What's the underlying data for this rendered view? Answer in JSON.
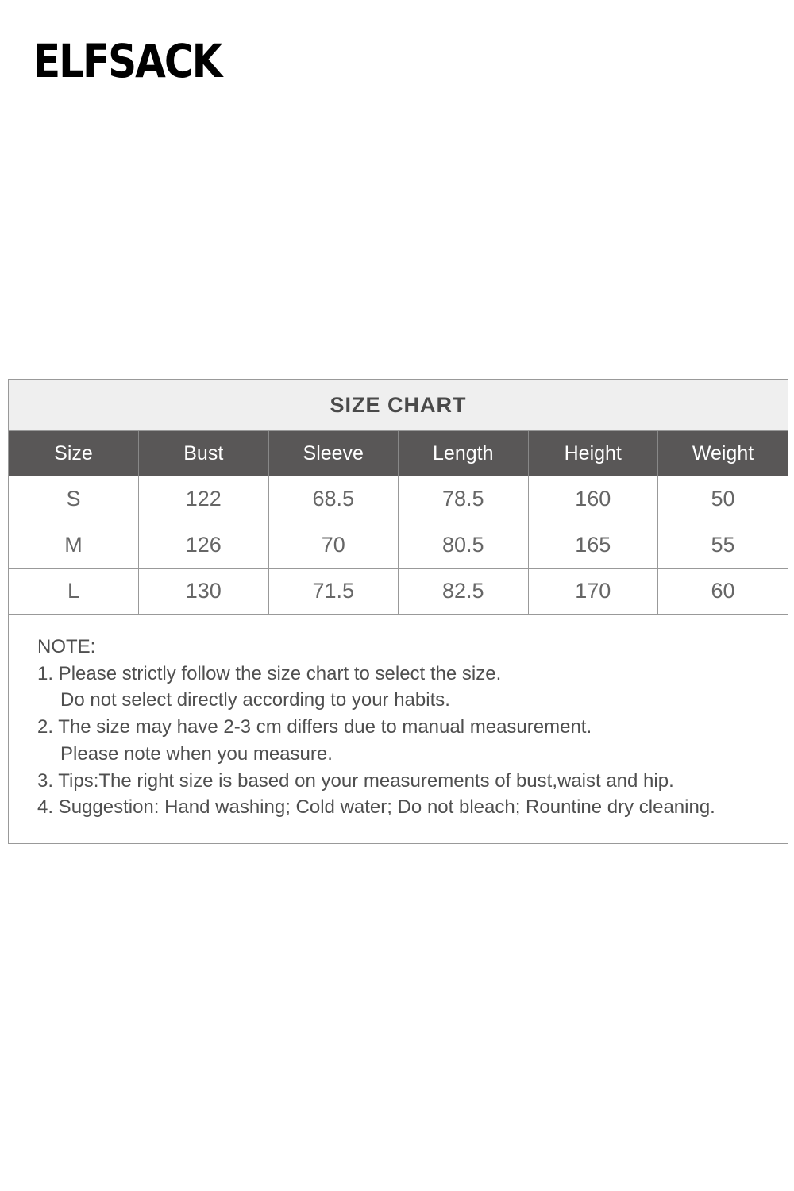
{
  "brand": {
    "logo_text": "ELFSACK"
  },
  "size_chart": {
    "title": "SIZE CHART",
    "columns": [
      "Size",
      "Bust",
      "Sleeve",
      "Length",
      "Height",
      "Weight"
    ],
    "rows": [
      [
        "S",
        "122",
        "68.5",
        "78.5",
        "160",
        "50"
      ],
      [
        "M",
        "126",
        "70",
        "80.5",
        "165",
        "55"
      ],
      [
        "L",
        "130",
        "71.5",
        "82.5",
        "170",
        "60"
      ]
    ],
    "header_color": "#595757",
    "title_bg": "#efefef"
  },
  "notes": {
    "heading": "NOTE:",
    "lines": [
      "1. Please strictly follow the size chart to select the size.",
      "Do not select directly according to your habits.",
      "2. The size may have 2-3 cm differs due to manual measurement.",
      "Please note when you measure.",
      "3. Tips:The right size is based on your measurements of bust,waist and hip.",
      "4. Suggestion: Hand washing; Cold water; Do not bleach; Rountine dry cleaning."
    ]
  }
}
